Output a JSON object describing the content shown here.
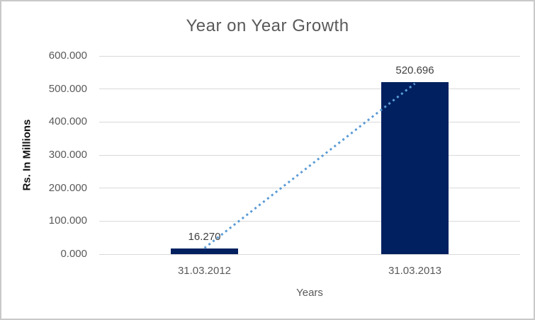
{
  "frame": {
    "background": "#FFFFFF",
    "border_color": "#C9C9C9"
  },
  "chart_data": {
    "type": "bar",
    "title": "Year on Year Growth",
    "xlabel": "Years",
    "ylabel": "Rs. In Millions",
    "categories": [
      "31.03.2012",
      "31.03.2013"
    ],
    "values": [
      16.27,
      520.696
    ],
    "value_labels": [
      "16.270",
      "520.696"
    ],
    "ylim": [
      0,
      600
    ],
    "yticks": [
      {
        "value": 0,
        "label": "0.000"
      },
      {
        "value": 100,
        "label": "100.000"
      },
      {
        "value": 200,
        "label": "200.000"
      },
      {
        "value": 300,
        "label": "300.000"
      },
      {
        "value": 400,
        "label": "400.000"
      },
      {
        "value": 500,
        "label": "500.000"
      },
      {
        "value": 600,
        "label": "600.000"
      }
    ],
    "grid": true,
    "legend": false,
    "bar_color": "#002060",
    "gridline_color": "#D9D9D9",
    "title_color": "#595959",
    "axis_text_color": "#595959",
    "value_label_color": "#404040",
    "trendline": {
      "style": "dotted",
      "color": "#5B9BD5",
      "connects": [
        "31.03.2012",
        "31.03.2013"
      ]
    }
  }
}
